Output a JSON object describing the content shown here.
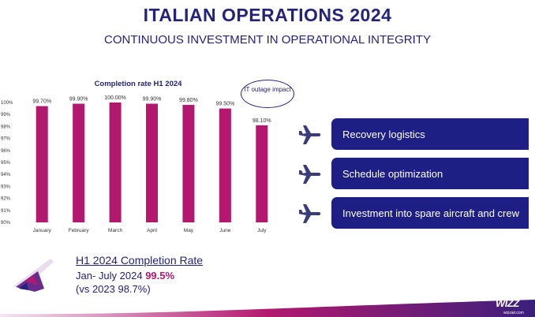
{
  "header": {
    "title": "ITALIAN OPERATIONS 2024",
    "subtitle": "CONTINUOUS INVESTMENT IN OPERATIONAL INTEGRITY"
  },
  "chart_data": {
    "type": "bar",
    "title": "Completion rate H1 2024",
    "categories": [
      "January",
      "February",
      "March",
      "April",
      "May",
      "June",
      "July"
    ],
    "values": [
      99.7,
      99.9,
      100.0,
      99.9,
      99.8,
      99.5,
      98.1
    ],
    "value_labels": [
      "99.70%",
      "99.90%",
      "100.00%",
      "99.90%",
      "99.80%",
      "99.50%",
      "98.10%"
    ],
    "ylim": [
      90,
      100
    ],
    "yticks": [
      "90%",
      "91%",
      "92%",
      "93%",
      "94%",
      "95%",
      "96%",
      "97%",
      "98%",
      "99%",
      "100%"
    ],
    "xlabel": "",
    "ylabel": "",
    "annotation": "IT outage impact",
    "bar_color": "#b3186f"
  },
  "chart_meta": {
    "annotation": "IT outage impact"
  },
  "actions": [
    {
      "label": "Recovery logistics",
      "icon": "airplane-icon"
    },
    {
      "label": "Schedule optimization",
      "icon": "airplane-icon"
    },
    {
      "label": "Investment into spare aircraft and crew",
      "icon": "airplane-icon"
    }
  ],
  "summary": {
    "heading": "H1 2024 Completion Rate",
    "period": "Jan- July 2024",
    "value": "99.5%",
    "comparison": "(vs 2023 98.7%)"
  },
  "logo": {
    "text": "WIZZ",
    "sub": "wizzair.com"
  },
  "colors": {
    "navy": "#24237a",
    "box": "#1d1f84",
    "magenta": "#b3186f",
    "purple": "#6a2c8c"
  }
}
